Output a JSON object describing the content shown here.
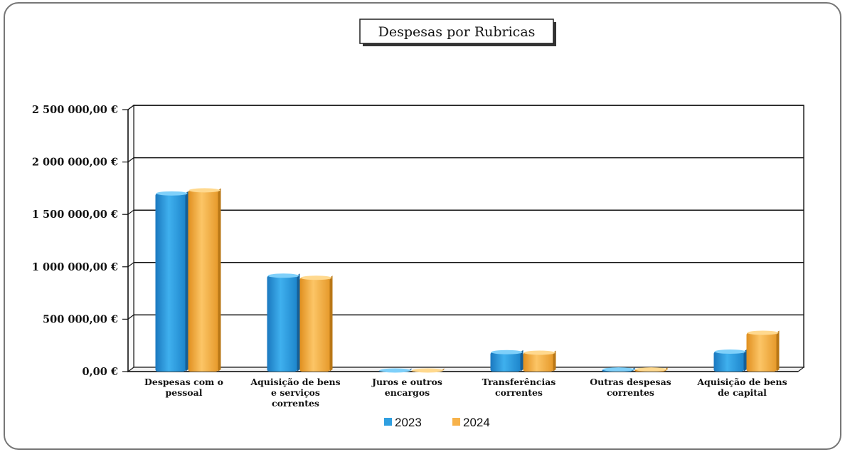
{
  "chart_data": {
    "type": "bar",
    "title": "Despesas por Rubricas",
    "categories": [
      [
        "Despesas com o",
        "pessoal"
      ],
      [
        "Aquisição de bens",
        "e serviços",
        "correntes"
      ],
      [
        "Juros e outros",
        "encargos"
      ],
      [
        "Transferências",
        "correntes"
      ],
      [
        "Outras despesas",
        "correntes"
      ],
      [
        "Aquisição de bens",
        "de capital"
      ]
    ],
    "series": [
      {
        "name": "2023",
        "color": "#2f9fe0",
        "values": [
          1700000,
          915000,
          10000,
          185000,
          20000,
          190000
        ]
      },
      {
        "name": "2024",
        "color": "#f7b24a",
        "values": [
          1730000,
          895000,
          10000,
          180000,
          20000,
          370000
        ]
      }
    ],
    "ylim": [
      0,
      2500000
    ],
    "yticks": [
      0,
      500000,
      1000000,
      1500000,
      2000000,
      2500000
    ],
    "ytick_labels": [
      "0,00 €",
      "500 000,00 €",
      "1 000 000,00 €",
      "1 500 000,00 €",
      "2 000 000,00 €",
      "2 500 000,00 €"
    ],
    "grid": true,
    "legend_position": "bottom"
  }
}
